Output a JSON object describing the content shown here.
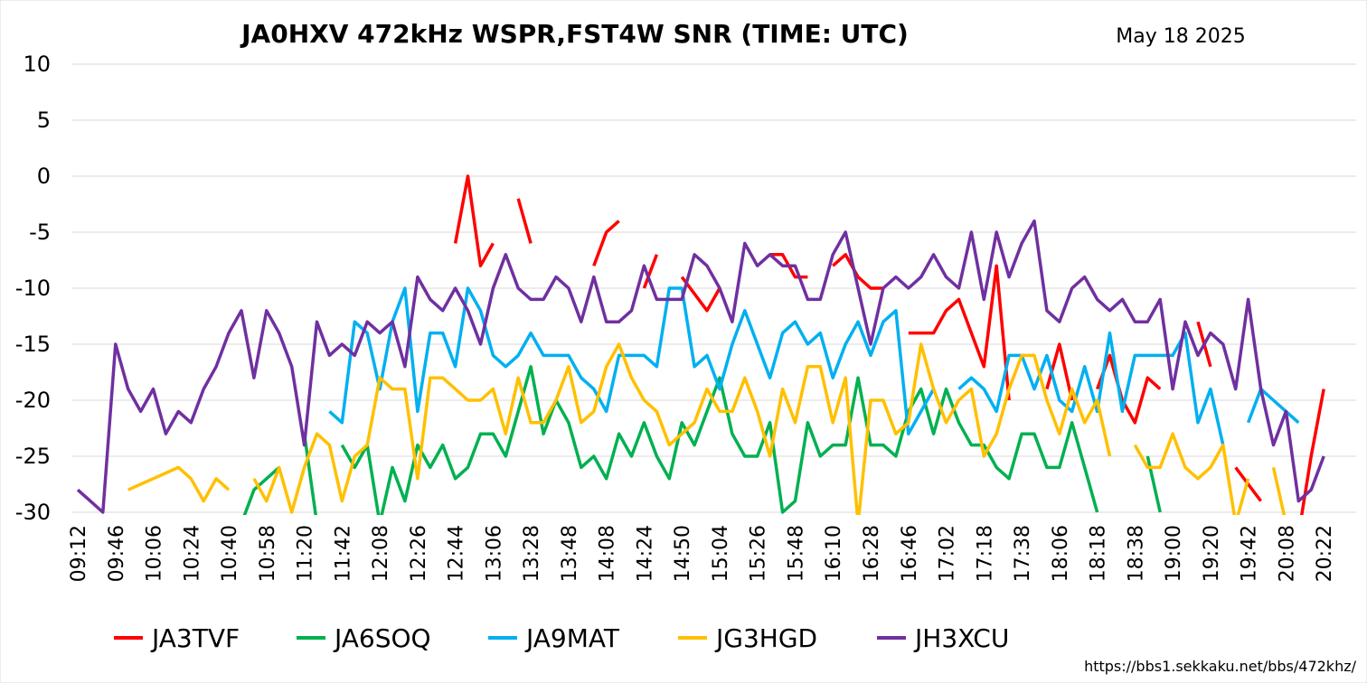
{
  "chart_data": {
    "type": "line",
    "title": "JA0HXV 472kHz WSPR,FST4W SNR (TIME: UTC)",
    "date": "May 18 2025",
    "url": "https://bbs1.sekkaku.net/bbs/472khz/",
    "xlabel": "",
    "ylabel": "",
    "ylim": [
      -30,
      10
    ],
    "yticks": [
      10,
      5,
      0,
      -5,
      -10,
      -15,
      -20,
      -25,
      -30
    ],
    "grid": true,
    "legend_position": "bottom",
    "x_count": 102,
    "x_labels": [
      {
        "i": 0,
        "label": "09:12"
      },
      {
        "i": 3,
        "label": "09:46"
      },
      {
        "i": 6,
        "label": "10:06"
      },
      {
        "i": 9,
        "label": "10:24"
      },
      {
        "i": 12,
        "label": "10:40"
      },
      {
        "i": 15,
        "label": "10:58"
      },
      {
        "i": 18,
        "label": "11:20"
      },
      {
        "i": 21,
        "label": "11:42"
      },
      {
        "i": 24,
        "label": "12:08"
      },
      {
        "i": 27,
        "label": "12:26"
      },
      {
        "i": 30,
        "label": "12:44"
      },
      {
        "i": 33,
        "label": "13:06"
      },
      {
        "i": 36,
        "label": "13:28"
      },
      {
        "i": 39,
        "label": "13:48"
      },
      {
        "i": 42,
        "label": "14:08"
      },
      {
        "i": 45,
        "label": "14:24"
      },
      {
        "i": 48,
        "label": "14:50"
      },
      {
        "i": 51,
        "label": "15:04"
      },
      {
        "i": 54,
        "label": "15:26"
      },
      {
        "i": 57,
        "label": "15:48"
      },
      {
        "i": 60,
        "label": "16:10"
      },
      {
        "i": 63,
        "label": "16:28"
      },
      {
        "i": 66,
        "label": "16:46"
      },
      {
        "i": 69,
        "label": "17:02"
      },
      {
        "i": 72,
        "label": "17:18"
      },
      {
        "i": 75,
        "label": "17:38"
      },
      {
        "i": 78,
        "label": "18:06"
      },
      {
        "i": 81,
        "label": "18:18"
      },
      {
        "i": 84,
        "label": "18:38"
      },
      {
        "i": 87,
        "label": "19:00"
      },
      {
        "i": 90,
        "label": "19:20"
      },
      {
        "i": 93,
        "label": "19:42"
      },
      {
        "i": 96,
        "label": "20:08"
      },
      {
        "i": 99,
        "label": "20:22"
      }
    ],
    "series": [
      {
        "name": "JA3TVF",
        "color": "#FF0000",
        "values": [
          null,
          null,
          null,
          null,
          null,
          null,
          null,
          null,
          null,
          null,
          null,
          null,
          null,
          null,
          null,
          null,
          null,
          null,
          null,
          null,
          null,
          null,
          null,
          null,
          null,
          null,
          null,
          null,
          null,
          null,
          -6,
          0,
          -8,
          -6,
          null,
          -2,
          -6,
          null,
          null,
          null,
          null,
          -8,
          -5,
          -4,
          null,
          -10,
          -7,
          null,
          -9,
          -10.5,
          -12,
          -10,
          null,
          null,
          null,
          -7,
          -7,
          -9,
          -9,
          null,
          -8,
          -7,
          -9,
          -10,
          -10,
          null,
          -14,
          -14,
          -14,
          -12,
          -11,
          -14,
          -17,
          -8,
          -20,
          null,
          null,
          -19,
          -15,
          -20,
          null,
          -19,
          -16,
          -20,
          -22,
          -18,
          -19,
          null,
          null,
          -13,
          -17,
          null,
          -26,
          -27.5,
          -29,
          null,
          null,
          -32,
          -25,
          -19
        ]
      },
      {
        "name": "JA6SOQ",
        "color": "#00B050",
        "values": [
          null,
          null,
          null,
          null,
          null,
          null,
          null,
          null,
          null,
          null,
          null,
          null,
          null,
          -31,
          -28,
          -27,
          -26,
          null,
          -23,
          -31,
          null,
          -24,
          -26,
          -24,
          -31,
          -26,
          -29,
          -24,
          -26,
          -24,
          -27,
          -26,
          -23,
          -23,
          -25,
          -21,
          -17,
          -23,
          -20,
          -22,
          -26,
          -25,
          -27,
          -23,
          -25,
          -22,
          -25,
          -27,
          -22,
          -24,
          -21,
          -18,
          -23,
          -25,
          -25,
          -22,
          -30,
          -29,
          -22,
          -25,
          -24,
          -24,
          -18,
          -24,
          -24,
          -25,
          -21,
          -19,
          -23,
          -19,
          -22,
          -24,
          -24,
          -26,
          -27,
          -23,
          -23,
          -26,
          -26,
          -22,
          -26,
          -30,
          null,
          null,
          null,
          -25,
          -30,
          null,
          null,
          -30,
          null,
          null,
          null,
          null,
          null,
          null,
          null,
          null,
          null,
          null,
          null,
          null
        ]
      },
      {
        "name": "JA9MAT",
        "color": "#00B0F0",
        "values": [
          null,
          null,
          null,
          null,
          null,
          null,
          null,
          null,
          null,
          null,
          null,
          null,
          null,
          null,
          null,
          null,
          null,
          null,
          null,
          null,
          -21,
          -22,
          -13,
          -14,
          -19,
          -13,
          -10,
          -21,
          -14,
          -14,
          -17,
          -10,
          -12,
          -16,
          -17,
          -16,
          -14,
          -16,
          -16,
          -16,
          -18,
          -19,
          -21,
          -16,
          -16,
          -16,
          -17,
          -10,
          -10,
          -17,
          -16,
          -19,
          -15,
          -12,
          -15,
          -18,
          -14,
          -13,
          -15,
          -14,
          -18,
          -15,
          -13,
          -16,
          -13,
          -12,
          -23,
          -21,
          -19,
          null,
          -19,
          -18,
          -19,
          -21,
          -16,
          -16,
          -19,
          -16,
          -20,
          -21,
          -17,
          -21,
          -14,
          -21,
          -16,
          -16,
          -16,
          -16,
          -14,
          -22,
          -19,
          -24,
          null,
          -22,
          -19,
          -20,
          -21,
          -22,
          null,
          null,
          null,
          null
        ]
      },
      {
        "name": "JG3HGD",
        "color": "#FFC000",
        "values": [
          null,
          null,
          null,
          null,
          -28,
          -27.5,
          -27,
          -26.5,
          -26,
          -27,
          -29,
          -27,
          -28,
          null,
          -27,
          -29,
          -26,
          -30,
          -26,
          -23,
          -24,
          -29,
          -25,
          -24,
          -18,
          -19,
          -19,
          -27,
          -18,
          -18,
          -19,
          -20,
          -20,
          -19,
          -23,
          -18,
          -22,
          -22,
          -20,
          -17,
          -22,
          -21,
          -17,
          -15,
          -18,
          -20,
          -21,
          -24,
          -23,
          -22,
          -19,
          -21,
          -21,
          -18,
          -21,
          -25,
          -19,
          -22,
          -17,
          -17,
          -22,
          -18,
          -31,
          -20,
          -20,
          -23,
          -22,
          -15,
          -19,
          -22,
          -20,
          -19,
          -25,
          -23,
          -19,
          -16,
          -16,
          -20,
          -23,
          -19,
          -22,
          -20,
          -25,
          null,
          -24,
          -26,
          -26,
          -23,
          -26,
          -27,
          -26,
          -24,
          -31,
          -27,
          null,
          -26,
          -31,
          null,
          -30,
          null,
          null,
          null
        ]
      },
      {
        "name": "JH3XCU",
        "color": "#7030A0",
        "values": [
          -28,
          -29,
          -30,
          -15,
          -19,
          -21,
          -19,
          -23,
          -21,
          -22,
          -19,
          -17,
          -14,
          -12,
          -18,
          -12,
          -14,
          -17,
          -24,
          -13,
          -16,
          -15,
          -16,
          -13,
          -14,
          -13,
          -17,
          -9,
          -11,
          -12,
          -10,
          -12,
          -15,
          -10,
          -7,
          -10,
          -11,
          -11,
          -9,
          -10,
          -13,
          -9,
          -13,
          -13,
          -12,
          -8,
          -11,
          -11,
          -11,
          -7,
          -8,
          -10,
          -13,
          -6,
          -8,
          -7,
          -8,
          -8,
          -11,
          -11,
          -7,
          -5,
          -10,
          -15,
          -10,
          -9,
          -10,
          -9,
          -7,
          -9,
          -10,
          -5,
          -11,
          -5,
          -9,
          -6,
          -4,
          -12,
          -13,
          -10,
          -9,
          -11,
          -12,
          -11,
          -13,
          -13,
          -11,
          -19,
          -13,
          -16,
          -14,
          -15,
          -19,
          -11,
          -19,
          -24,
          -21,
          -29,
          -28,
          -25,
          null,
          null
        ]
      }
    ]
  }
}
